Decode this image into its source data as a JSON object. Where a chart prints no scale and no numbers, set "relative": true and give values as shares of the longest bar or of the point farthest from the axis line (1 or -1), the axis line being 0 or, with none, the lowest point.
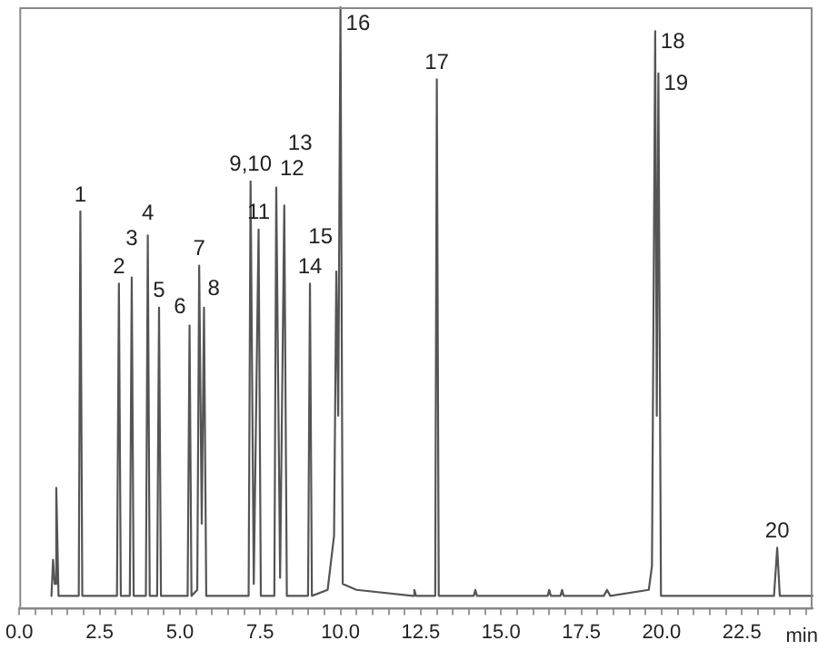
{
  "chart_data": {
    "type": "line",
    "relative": true,
    "xlabel": "min",
    "xlim": [
      0,
      24.7
    ],
    "xticks": [
      {
        "value": 0,
        "label": "0.0"
      },
      {
        "value": 0.5,
        "label": null
      },
      {
        "value": 1,
        "label": null
      },
      {
        "value": 1.5,
        "label": null
      },
      {
        "value": 2,
        "label": null
      },
      2.5,
      {
        "value": 3,
        "label": null
      },
      {
        "value": 3.5,
        "label": null
      },
      {
        "value": 4,
        "label": null
      },
      {
        "value": 4.5,
        "label": null
      },
      {
        "value": 5,
        "label": "5.0"
      },
      {
        "value": 5.5,
        "label": null
      },
      {
        "value": 6,
        "label": null
      },
      {
        "value": 6.5,
        "label": null
      },
      {
        "value": 7,
        "label": null
      },
      7.5,
      {
        "value": 8,
        "label": null
      },
      {
        "value": 8.5,
        "label": null
      },
      {
        "value": 9,
        "label": null
      },
      {
        "value": 9.5,
        "label": null
      },
      {
        "value": 10,
        "label": "10.0"
      },
      {
        "value": 10.5,
        "label": null
      },
      {
        "value": 11,
        "label": null
      },
      {
        "value": 11.5,
        "label": null
      },
      {
        "value": 12,
        "label": null
      },
      12.5,
      {
        "value": 13,
        "label": null
      },
      {
        "value": 13.5,
        "label": null
      },
      {
        "value": 14,
        "label": null
      },
      {
        "value": 14.5,
        "label": null
      },
      {
        "value": 15,
        "label": "15.0"
      },
      {
        "value": 15.5,
        "label": null
      },
      {
        "value": 16,
        "label": null
      },
      {
        "value": 16.5,
        "label": null
      },
      {
        "value": 17,
        "label": null
      },
      17.5,
      {
        "value": 18,
        "label": null
      },
      {
        "value": 18.5,
        "label": null
      },
      {
        "value": 19,
        "label": null
      },
      {
        "value": 19.5,
        "label": null
      },
      {
        "value": 20,
        "label": "20.0"
      },
      {
        "value": 20.5,
        "label": null
      },
      {
        "value": 21,
        "label": null
      },
      {
        "value": 21.5,
        "label": null
      },
      {
        "value": 22,
        "label": null
      },
      22.5,
      {
        "value": 23,
        "label": null
      },
      {
        "value": 23.5,
        "label": null
      },
      {
        "value": 24,
        "label": null
      },
      {
        "value": 24.5,
        "label": null
      }
    ],
    "tick_labels": "x",
    "grid": false,
    "legend": false,
    "marker": "none",
    "line_style": "solid",
    "series": [
      {
        "color": "#555555",
        "x": [
          1.0,
          1.05,
          1.1,
          1.15,
          1.22,
          1.85,
          1.9,
          1.96,
          3.04,
          3.1,
          3.16,
          3.44,
          3.5,
          3.56,
          3.94,
          4.0,
          4.06,
          4.29,
          4.35,
          4.41,
          5.24,
          5.3,
          5.36,
          5.54,
          5.6,
          5.68,
          5.75,
          5.82,
          7.14,
          7.2,
          7.3,
          7.45,
          7.52,
          7.94,
          8.0,
          8.12,
          8.25,
          8.33,
          8.99,
          9.05,
          9.11,
          9.6,
          9.8,
          9.87,
          9.93,
          10.0,
          10.07,
          10.5,
          12.25,
          12.3,
          12.35,
          12.95,
          13.0,
          13.06,
          14.15,
          14.2,
          14.25,
          16.45,
          16.5,
          16.55,
          16.85,
          16.9,
          16.95,
          18.2,
          18.3,
          18.4,
          19.6,
          19.7,
          19.8,
          19.85,
          19.9,
          19.98,
          23.5,
          23.6,
          23.68,
          24.7
        ],
        "values": [
          0.02,
          0.08,
          0.04,
          0.2,
          0.02,
          0.02,
          0.66,
          0.02,
          0.02,
          0.54,
          0.02,
          0.02,
          0.55,
          0.02,
          0.02,
          0.62,
          0.02,
          0.02,
          0.5,
          0.02,
          0.02,
          0.47,
          0.02,
          0.03,
          0.57,
          0.14,
          0.5,
          0.02,
          0.02,
          0.71,
          0.04,
          0.63,
          0.02,
          0.02,
          0.7,
          0.05,
          0.67,
          0.02,
          0.02,
          0.54,
          0.02,
          0.03,
          0.12,
          0.56,
          0.32,
          1,
          0.04,
          0.03,
          0.02,
          0.03,
          0.02,
          0.02,
          0.88,
          0.02,
          0.02,
          0.03,
          0.02,
          0.02,
          0.03,
          0.02,
          0.02,
          0.03,
          0.02,
          0.02,
          0.03,
          0.02,
          0.03,
          0.07,
          0.96,
          0.32,
          0.89,
          0.02,
          0.02,
          0.1,
          0.02,
          0.02
        ]
      }
    ],
    "annotations": [
      {
        "text": "1",
        "x": 1.9,
        "y": 0.66
      },
      {
        "text": "2",
        "x": 3.1,
        "y": 0.54
      },
      {
        "text": "3",
        "x": 3.5,
        "y": 0.55
      },
      {
        "text": "4",
        "x": 4.0,
        "y": 0.62
      },
      {
        "text": "5",
        "x": 4.35,
        "y": 0.5
      },
      {
        "text": "6",
        "x": 5.3,
        "y": 0.47
      },
      {
        "text": "7",
        "x": 5.6,
        "y": 0.57
      },
      {
        "text": "8",
        "x": 5.75,
        "y": 0.5
      },
      {
        "text": "9,10",
        "x": 7.2,
        "y": 0.71
      },
      {
        "text": "11",
        "x": 7.45,
        "y": 0.63
      },
      {
        "text": "12",
        "x": 8.0,
        "y": 0.7
      },
      {
        "text": "13",
        "x": 8.25,
        "y": 0.67
      },
      {
        "text": "14",
        "x": 9.05,
        "y": 0.54
      },
      {
        "text": "15",
        "x": 9.87,
        "y": 0.56
      },
      {
        "text": "16",
        "x": 10.0,
        "y": 1
      },
      {
        "text": "17",
        "x": 13.0,
        "y": 0.88
      },
      {
        "text": "18",
        "x": 19.8,
        "y": 0.96
      },
      {
        "text": "19",
        "x": 19.9,
        "y": 0.89
      },
      {
        "text": "20",
        "x": 23.6,
        "y": 0.1
      }
    ]
  }
}
